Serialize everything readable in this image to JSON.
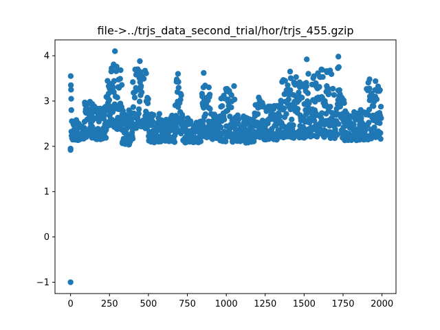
{
  "chart_data": {
    "type": "scatter",
    "title": "file->../trjs_data_second_trial/hor/trjs_455.gzip",
    "xlabel": "",
    "ylabel": "",
    "xlim": [
      -100,
      2090
    ],
    "ylim": [
      -1.25,
      4.35
    ],
    "xticks": [
      0,
      250,
      500,
      750,
      1000,
      1250,
      1500,
      1750,
      2000
    ],
    "yticks": [
      -1,
      0,
      1,
      2,
      3,
      4
    ],
    "grid": false,
    "color": "#1f77b4",
    "special_points": [
      {
        "x": 0,
        "y": -1.0
      },
      {
        "x": 0,
        "y": 1.92
      },
      {
        "x": 0,
        "y": 1.95
      },
      {
        "x": 1,
        "y": 3.55
      },
      {
        "x": 2,
        "y": 3.35
      },
      {
        "x": 3,
        "y": 3.25
      },
      {
        "x": 4,
        "y": 3.05
      },
      {
        "x": 5,
        "y": 2.8
      },
      {
        "x": 285,
        "y": 4.1
      },
      {
        "x": 445,
        "y": 3.88
      },
      {
        "x": 1517,
        "y": 3.92
      },
      {
        "x": 1720,
        "y": 3.98
      },
      {
        "x": 855,
        "y": 3.62
      },
      {
        "x": 690,
        "y": 3.6
      },
      {
        "x": 1410,
        "y": 3.65
      },
      {
        "x": 1920,
        "y": 3.48
      }
    ],
    "segments": [
      {
        "x0": 5,
        "x1": 90,
        "lo": 2.15,
        "hi": 2.6
      },
      {
        "x0": 90,
        "x1": 140,
        "lo": 2.2,
        "hi": 3.0
      },
      {
        "x0": 140,
        "x1": 230,
        "lo": 2.15,
        "hi": 2.95
      },
      {
        "x0": 230,
        "x1": 330,
        "lo": 2.4,
        "hi": 3.85
      },
      {
        "x0": 330,
        "x1": 400,
        "lo": 2.05,
        "hi": 2.8
      },
      {
        "x0": 400,
        "x1": 500,
        "lo": 2.4,
        "hi": 3.75
      },
      {
        "x0": 500,
        "x1": 670,
        "lo": 2.1,
        "hi": 2.75
      },
      {
        "x0": 670,
        "x1": 720,
        "lo": 2.3,
        "hi": 3.55
      },
      {
        "x0": 720,
        "x1": 840,
        "lo": 2.1,
        "hi": 2.6
      },
      {
        "x0": 840,
        "x1": 900,
        "lo": 2.2,
        "hi": 3.4
      },
      {
        "x0": 900,
        "x1": 960,
        "lo": 2.15,
        "hi": 2.7
      },
      {
        "x0": 960,
        "x1": 1060,
        "lo": 2.1,
        "hi": 3.4
      },
      {
        "x0": 1060,
        "x1": 1180,
        "lo": 2.1,
        "hi": 2.7
      },
      {
        "x0": 1180,
        "x1": 1240,
        "lo": 2.2,
        "hi": 3.1
      },
      {
        "x0": 1240,
        "x1": 1330,
        "lo": 2.15,
        "hi": 2.9
      },
      {
        "x0": 1330,
        "x1": 1500,
        "lo": 2.2,
        "hi": 3.55
      },
      {
        "x0": 1500,
        "x1": 1700,
        "lo": 2.2,
        "hi": 3.7
      },
      {
        "x0": 1700,
        "x1": 1760,
        "lo": 2.2,
        "hi": 3.85
      },
      {
        "x0": 1760,
        "x1": 1900,
        "lo": 2.15,
        "hi": 2.8
      },
      {
        "x0": 1900,
        "x1": 1995,
        "lo": 2.15,
        "hi": 3.45
      }
    ]
  }
}
